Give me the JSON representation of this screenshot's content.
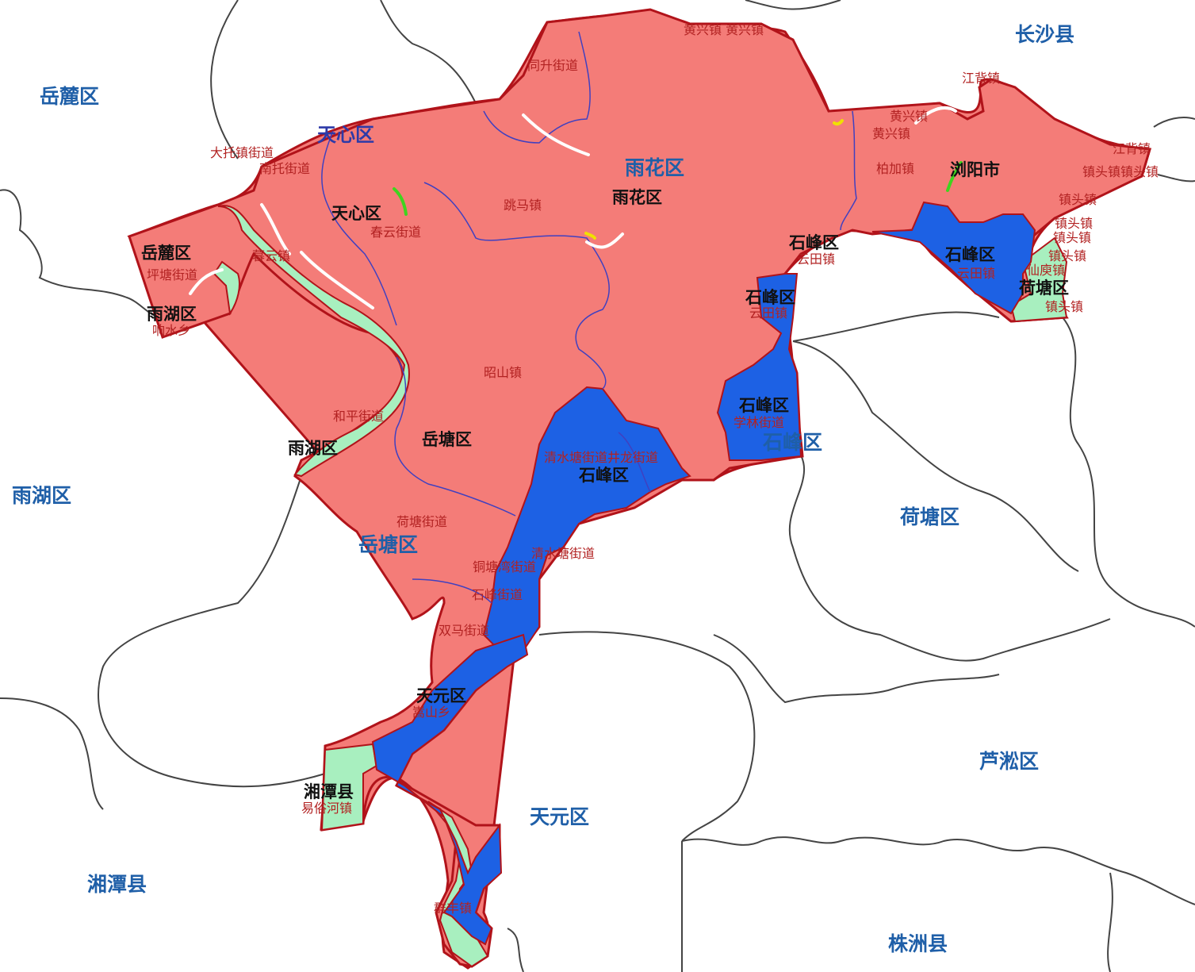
{
  "colors": {
    "zone_red": "#f47c78",
    "zone_blue": "#1d61e4",
    "zone_green": "#a8efbf",
    "border_red": "#b1131a",
    "outline_gray": "#444444",
    "river_line": "#4040c0",
    "mark_white": "#ffffff",
    "mark_green": "#3fd41f",
    "mark_yellow": "#f0e000"
  },
  "regions": [
    {
      "name": "岳麓区"
    },
    {
      "name": "长沙县"
    },
    {
      "name": "雨湖区"
    },
    {
      "name": "荷塘区"
    },
    {
      "name": "芦淞区"
    },
    {
      "name": "天元区"
    },
    {
      "name": "湘潭县"
    },
    {
      "name": "株洲县"
    },
    {
      "name": "雨花区"
    },
    {
      "name": "天心区"
    },
    {
      "name": "岳塘区"
    },
    {
      "name": "石峰区"
    }
  ],
  "districts": [
    {
      "name": "岳麓区"
    },
    {
      "name": "雨湖区"
    },
    {
      "name": "天心区"
    },
    {
      "name": "雨花区"
    },
    {
      "name": "浏阳市"
    },
    {
      "name": "石峰区"
    },
    {
      "name": "石峰区"
    },
    {
      "name": "石峰区"
    },
    {
      "name": "石峰区"
    },
    {
      "name": "荷塘区"
    },
    {
      "name": "石峰区"
    },
    {
      "name": "雨湖区"
    },
    {
      "name": "岳塘区"
    },
    {
      "name": "天元区"
    },
    {
      "name": "湘潭县"
    }
  ],
  "towns": [
    {
      "name": "黄兴镇 黄兴镇"
    },
    {
      "name": "同升街道"
    },
    {
      "name": "江背镇"
    },
    {
      "name": "黄兴镇"
    },
    {
      "name": "黄兴镇"
    },
    {
      "name": "大托镇街道"
    },
    {
      "name": "南托街道"
    },
    {
      "name": "柏加镇"
    },
    {
      "name": "江背镇"
    },
    {
      "name": "镇头镇镇头镇"
    },
    {
      "name": "跳马镇"
    },
    {
      "name": "春云街道"
    },
    {
      "name": "镇头镇"
    },
    {
      "name": "镇头镇"
    },
    {
      "name": "镇头镇"
    },
    {
      "name": "坪塘街道"
    },
    {
      "name": "暮云镇"
    },
    {
      "name": "云田镇"
    },
    {
      "name": "云田镇"
    },
    {
      "name": "镇头镇"
    },
    {
      "name": "仙庾镇"
    },
    {
      "name": "云田镇"
    },
    {
      "name": "镇头镇"
    },
    {
      "name": "昭山镇"
    },
    {
      "name": "学林街道"
    },
    {
      "name": "和平街道"
    },
    {
      "name": "清水塘街道井龙街道"
    },
    {
      "name": "荷塘街道"
    },
    {
      "name": "清水塘街道"
    },
    {
      "name": "铜塘湾街道"
    },
    {
      "name": "石峰街道"
    },
    {
      "name": "双马街道"
    },
    {
      "name": "嵩山乡"
    },
    {
      "name": "群丰镇"
    },
    {
      "name": "易俗河镇"
    },
    {
      "name": "响水乡"
    }
  ]
}
